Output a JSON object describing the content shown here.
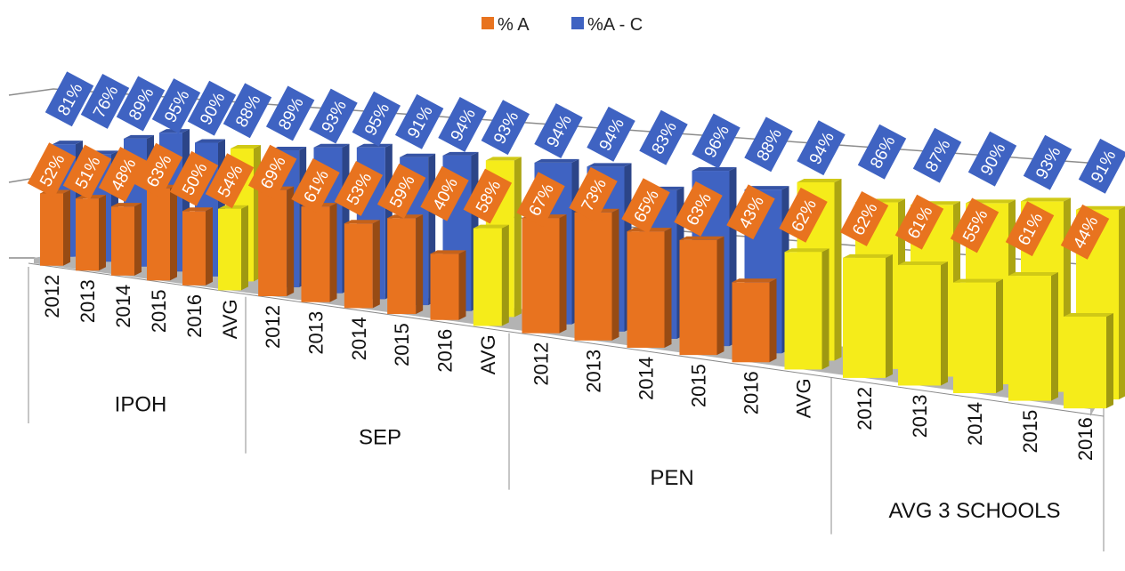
{
  "chart_data": {
    "type": "bar",
    "title": "",
    "legend": {
      "position": "top",
      "entries": [
        {
          "name": "% A",
          "color": "#e8731f"
        },
        {
          "name": "%A - C",
          "color": "#3f63c2"
        }
      ]
    },
    "groups": [
      {
        "name": "IPOH",
        "categories": [
          "2012",
          "2013",
          "2014",
          "2015",
          "2016",
          "AVG"
        ],
        "series": [
          {
            "name": "% A",
            "values": [
              52,
              51,
              48,
              63,
              50,
              54
            ]
          },
          {
            "name": "%A - C",
            "values": [
              81,
              76,
              89,
              95,
              90,
              88
            ]
          }
        ]
      },
      {
        "name": "SEP",
        "categories": [
          "2012",
          "2013",
          "2014",
          "2015",
          "2016",
          "AVG"
        ],
        "series": [
          {
            "name": "% A",
            "values": [
              69,
              61,
              53,
              59,
              40,
              58
            ]
          },
          {
            "name": "%A - C",
            "values": [
              89,
              93,
              95,
              91,
              94,
              93
            ]
          }
        ]
      },
      {
        "name": "PEN",
        "categories": [
          "2012",
          "2013",
          "2014",
          "2015",
          "2016",
          "AVG"
        ],
        "series": [
          {
            "name": "% A",
            "values": [
              67,
              73,
              65,
              63,
              43,
              62
            ]
          },
          {
            "name": "%A - C",
            "values": [
              94,
              94,
              83,
              96,
              88,
              94
            ]
          }
        ]
      },
      {
        "name": "AVG 3 SCHOOLS",
        "categories": [
          "2012",
          "2013",
          "2014",
          "2015",
          "2016"
        ],
        "series": [
          {
            "name": "% A",
            "values": [
              62,
              61,
              55,
              61,
              44
            ]
          },
          {
            "name": "%A - C",
            "values": [
              86,
              87,
              90,
              93,
              91
            ]
          }
        ]
      }
    ],
    "value_suffix": "%",
    "colors": {
      "orange": "#e8731f",
      "blue": "#3f63c2",
      "yellow": "#f5ec1a",
      "floor": "#b3b3b3",
      "grid": "#8c8c8c"
    }
  }
}
